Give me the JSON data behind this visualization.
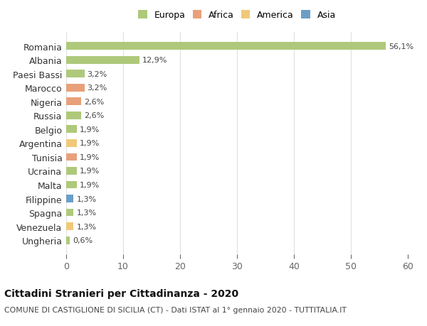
{
  "categories": [
    "Romania",
    "Albania",
    "Paesi Bassi",
    "Marocco",
    "Nigeria",
    "Russia",
    "Belgio",
    "Argentina",
    "Tunisia",
    "Ucraina",
    "Malta",
    "Filippine",
    "Spagna",
    "Venezuela",
    "Ungheria"
  ],
  "values": [
    56.1,
    12.9,
    3.2,
    3.2,
    2.6,
    2.6,
    1.9,
    1.9,
    1.9,
    1.9,
    1.9,
    1.3,
    1.3,
    1.3,
    0.6
  ],
  "labels": [
    "56,1%",
    "12,9%",
    "3,2%",
    "3,2%",
    "2,6%",
    "2,6%",
    "1,9%",
    "1,9%",
    "1,9%",
    "1,9%",
    "1,9%",
    "1,3%",
    "1,3%",
    "1,3%",
    "0,6%"
  ],
  "colors": [
    "#aec97a",
    "#aec97a",
    "#aec97a",
    "#e8a07a",
    "#e8a07a",
    "#aec97a",
    "#aec97a",
    "#f0c97a",
    "#e8a07a",
    "#aec97a",
    "#aec97a",
    "#6b9ec7",
    "#aec97a",
    "#f0c97a",
    "#aec97a"
  ],
  "legend_labels": [
    "Europa",
    "Africa",
    "America",
    "Asia"
  ],
  "legend_colors": [
    "#aec97a",
    "#e8a07a",
    "#f0c97a",
    "#6b9ec7"
  ],
  "title": "Cittadini Stranieri per Cittadinanza - 2020",
  "subtitle": "COMUNE DI CASTIGLIONE DI SICILIA (CT) - Dati ISTAT al 1° gennaio 2020 - TUTTITALIA.IT",
  "xlim": [
    0,
    60
  ],
  "xticks": [
    0,
    10,
    20,
    30,
    40,
    50,
    60
  ],
  "background_color": "#ffffff",
  "grid_color": "#e0e0e0",
  "bar_height": 0.55
}
